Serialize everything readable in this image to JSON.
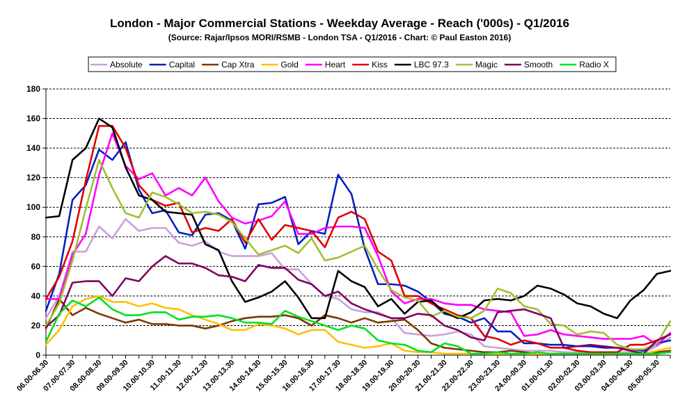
{
  "chart_data": {
    "type": "line",
    "title": "London - Major Commercial Stations - Weekday Average - Reach ('000s) - Q1/2016",
    "subtitle": "(Source: Rajar/Ipsos MORI/RSMB - London TSA - Q1/2016 - Chart: © Paul Easton 2016)",
    "ylim": [
      0,
      180
    ],
    "yticks": [
      0,
      20,
      40,
      60,
      80,
      100,
      120,
      140,
      160,
      180
    ],
    "grid": "horizontal dashed",
    "legend_position": "top",
    "x": [
      "06.00-06.30",
      "06.30-07.00",
      "07.00-07.30",
      "07.30-08.00",
      "08.00-08.30",
      "08.30-09.00",
      "09.00-09.30",
      "09.30-10.00",
      "10.00-10.30",
      "10.30-11.00",
      "11.00-11.30",
      "11.30-12.00",
      "12.00-12.30",
      "12.30-13.00",
      "13.00-13.30",
      "13.30-14.00",
      "14.00-14.30",
      "14.30-15.00",
      "15.00-15.30",
      "15.30-16.00",
      "16.00-16.30",
      "16.30-17.00",
      "17.00-17.30",
      "17.30-18.00",
      "18.00-18.30",
      "18.30-19.00",
      "19.00-19.30",
      "19.30-20.00",
      "20.00-20.30",
      "20.30-21.00",
      "21.00-21.30",
      "21.30-22.00",
      "22.00-22.30",
      "22.30-23.00",
      "23.00-23.30",
      "23.30-24.00",
      "24.00-00.30",
      "00.30-01.00",
      "01.00-01.30",
      "01.30-02.00",
      "02.00-02.30",
      "02.30-03.00",
      "03.00-03.30",
      "03.30-04.00",
      "04.00-04.30",
      "04.30-05.00",
      "05.00-05.30",
      "05.30-06.00"
    ],
    "xtick_labels": [
      "06.00-06.30",
      "07.00-07.30",
      "08.00-08.30",
      "09.00-09.30",
      "10.00-10.30",
      "11.00-11.30",
      "12.00-12.30",
      "13.00-13.30",
      "14.00-14.30",
      "15.00-15.30",
      "16.00-16.30",
      "17.00-17.30",
      "18.00-18.30",
      "19.00-19.30",
      "20.00-20.30",
      "21.00-21.30",
      "22.00-22.30",
      "23.00-23.30",
      "24.00-00.30",
      "01.00-01.30",
      "02.00-02.30",
      "03.00-03.30",
      "04.00-04.30",
      "05.00-05.30"
    ],
    "series": [
      {
        "name": "Absolute",
        "color": "#c9a0dc",
        "values": [
          25,
          40,
          70,
          70,
          87,
          79,
          92,
          84,
          86,
          86,
          76,
          74,
          77,
          70,
          67,
          67,
          67,
          69,
          58,
          58,
          48,
          40,
          38,
          31,
          29,
          29,
          25,
          15,
          14,
          13,
          14,
          16,
          14,
          6,
          5,
          4,
          3,
          3,
          3,
          2,
          2,
          2,
          2,
          2,
          2,
          2,
          6,
          12
        ]
      },
      {
        "name": "Capital",
        "color": "#0020c0",
        "values": [
          30,
          55,
          105,
          115,
          139,
          132,
          144,
          112,
          96,
          98,
          83,
          81,
          95,
          96,
          91,
          72,
          102,
          103,
          107,
          75,
          84,
          82,
          122,
          109,
          72,
          48,
          48,
          47,
          43,
          36,
          28,
          26,
          22,
          25,
          16,
          16,
          8,
          8,
          7,
          7,
          6,
          6,
          5,
          5,
          4,
          3,
          8,
          10
        ]
      },
      {
        "name": "Cap Xtra",
        "color": "#7a3800",
        "values": [
          18,
          38,
          27,
          32,
          28,
          25,
          22,
          24,
          21,
          21,
          20,
          20,
          18,
          20,
          23,
          25,
          26,
          26,
          27,
          25,
          20,
          27,
          25,
          22,
          25,
          22,
          23,
          24,
          17,
          8,
          5,
          4,
          3,
          2,
          2,
          3,
          2,
          1,
          1,
          1,
          1,
          1,
          1,
          1,
          1,
          1,
          2,
          3
        ]
      },
      {
        "name": "Gold",
        "color": "#ffc000",
        "values": [
          7,
          17,
          33,
          38,
          40,
          36,
          36,
          33,
          35,
          32,
          31,
          27,
          24,
          21,
          17,
          17,
          21,
          20,
          18,
          14,
          17,
          17,
          9,
          7,
          5,
          6,
          8,
          3,
          2,
          2,
          1,
          1,
          1,
          1,
          1,
          1,
          1,
          1,
          1,
          1,
          1,
          1,
          1,
          1,
          1,
          1,
          3,
          5
        ]
      },
      {
        "name": "Heart",
        "color": "#ff00ff",
        "values": [
          38,
          38,
          68,
          82,
          122,
          150,
          128,
          119,
          123,
          108,
          113,
          108,
          120,
          104,
          93,
          89,
          91,
          94,
          104,
          82,
          82,
          86,
          87,
          87,
          86,
          67,
          43,
          35,
          38,
          38,
          35,
          34,
          34,
          31,
          30,
          29,
          13,
          14,
          17,
          14,
          13,
          12,
          11,
          11,
          11,
          13,
          7,
          15
        ]
      },
      {
        "name": "Kiss",
        "color": "#e00000",
        "values": [
          38,
          53,
          77,
          118,
          155,
          155,
          140,
          115,
          105,
          101,
          103,
          83,
          86,
          84,
          92,
          76,
          92,
          78,
          88,
          86,
          84,
          73,
          93,
          97,
          92,
          70,
          64,
          40,
          40,
          35,
          31,
          27,
          25,
          13,
          11,
          7,
          10,
          8,
          5,
          5,
          3,
          2,
          2,
          2,
          7,
          7,
          10,
          14
        ]
      },
      {
        "name": "LBC 97.3",
        "color": "#000000",
        "values": [
          93,
          94,
          132,
          140,
          160,
          154,
          127,
          108,
          105,
          97,
          96,
          95,
          75,
          71,
          50,
          36,
          39,
          43,
          50,
          39,
          25,
          25,
          57,
          50,
          46,
          33,
          38,
          28,
          36,
          37,
          29,
          25,
          29,
          37,
          38,
          37,
          40,
          47,
          45,
          41,
          35,
          33,
          28,
          25,
          37,
          44,
          55,
          57
        ]
      },
      {
        "name": "Magic",
        "color": "#a0c030",
        "values": [
          20,
          35,
          64,
          99,
          132,
          113,
          96,
          93,
          110,
          107,
          102,
          96,
          97,
          95,
          90,
          79,
          68,
          71,
          74,
          69,
          79,
          64,
          66,
          70,
          74,
          58,
          44,
          39,
          37,
          26,
          30,
          26,
          25,
          30,
          45,
          42,
          33,
          31,
          21,
          20,
          14,
          16,
          15,
          7,
          4,
          4,
          8,
          23
        ]
      },
      {
        "name": "Smooth",
        "color": "#800060",
        "values": [
          19,
          27,
          49,
          50,
          50,
          40,
          52,
          50,
          60,
          67,
          62,
          62,
          59,
          54,
          53,
          50,
          61,
          59,
          59,
          51,
          48,
          40,
          43,
          35,
          31,
          28,
          25,
          25,
          28,
          27,
          20,
          17,
          12,
          10,
          29,
          30,
          31,
          28,
          25,
          5,
          6,
          7,
          6,
          5,
          3,
          1,
          10,
          14
        ]
      },
      {
        "name": "Radio X",
        "color": "#00e020",
        "values": [
          9,
          28,
          37,
          33,
          39,
          31,
          27,
          27,
          29,
          29,
          24,
          26,
          26,
          27,
          25,
          22,
          22,
          21,
          30,
          26,
          23,
          20,
          17,
          20,
          18,
          10,
          8,
          7,
          3,
          2,
          8,
          6,
          1,
          1,
          2,
          1,
          1,
          2,
          1,
          1,
          1,
          1,
          1,
          1,
          1,
          1,
          1,
          2
        ]
      }
    ]
  }
}
